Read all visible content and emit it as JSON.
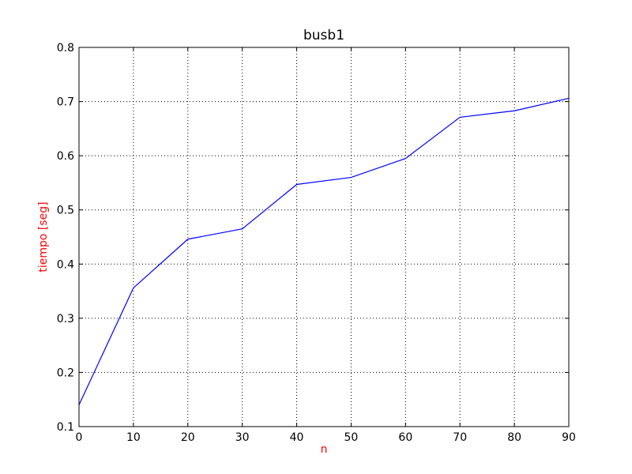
{
  "chart_data": {
    "type": "line",
    "title": "busb1",
    "xlabel": "n",
    "ylabel": "tiempo [seg]",
    "label_color": "#ff0000",
    "xlim": [
      0,
      90
    ],
    "ylim": [
      0.1,
      0.8
    ],
    "xticks": [
      0,
      10,
      20,
      30,
      40,
      50,
      60,
      70,
      80,
      90
    ],
    "yticks": [
      0.1,
      0.2,
      0.3,
      0.4,
      0.5,
      0.6,
      0.7,
      0.8
    ],
    "grid": true,
    "grid_style": "dotted",
    "x": [
      0,
      10,
      20,
      30,
      40,
      50,
      60,
      70,
      80,
      90
    ],
    "series": [
      {
        "color": "#0000ff",
        "values": [
          0.14,
          0.356,
          0.446,
          0.465,
          0.547,
          0.56,
          0.595,
          0.671,
          0.683,
          0.706
        ]
      }
    ]
  }
}
